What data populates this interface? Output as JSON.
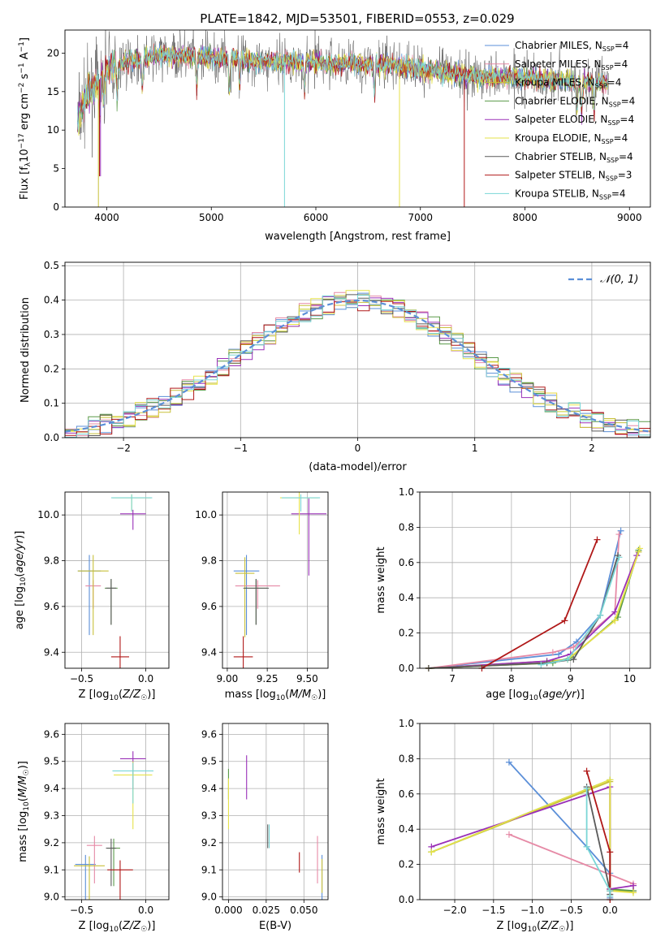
{
  "figure": {
    "title": "PLATE=1842, MJD=53501, FIBERID=0553, z=0.029"
  },
  "models": [
    {
      "name": "Chabrier MILES",
      "n_ssp": 4,
      "color": "#5b8fd8"
    },
    {
      "name": "Salpeter MILES",
      "n_ssp": 4,
      "color": "#e68aa6"
    },
    {
      "name": "Kroupa MILES",
      "n_ssp": 4,
      "color": "#c8c03a"
    },
    {
      "name": "Chabrier ELODIE",
      "n_ssp": 4,
      "color": "#5a9a48"
    },
    {
      "name": "Salpeter ELODIE",
      "n_ssp": 4,
      "color": "#9a30b8"
    },
    {
      "name": "Kroupa ELODIE",
      "n_ssp": 4,
      "color": "#e6e24a"
    },
    {
      "name": "Chabrier STELIB",
      "n_ssp": 4,
      "color": "#5a5a5a"
    },
    {
      "name": "Salpeter STELIB",
      "n_ssp": 3,
      "color": "#b01818"
    },
    {
      "name": "Kroupa STELIB",
      "n_ssp": 4,
      "color": "#7ad6d6"
    }
  ],
  "chart_data": [
    {
      "id": "spectrum",
      "type": "line",
      "title": "PLATE=1842, MJD=53501, FIBERID=0553, z=0.029",
      "xlabel": "wavelength [Angstrom, rest frame]",
      "ylabel": "Flux [f_λ 10^-17 erg cm^-2 s^-1 A^-1]",
      "xlim": [
        3600,
        9200
      ],
      "ylim": [
        0,
        23
      ],
      "xticks": [
        4000,
        5000,
        6000,
        7000,
        8000,
        9000
      ],
      "yticks": [
        0,
        5,
        10,
        15,
        20
      ],
      "series_shape": {
        "x": [
          3720,
          3800,
          3900,
          4000,
          4200,
          4400,
          4600,
          4800,
          5000,
          5200,
          5400,
          5600,
          5800,
          6000,
          6200,
          6400,
          6600,
          6800,
          7000,
          7200,
          7400,
          7600,
          7800,
          8000,
          8200,
          8400,
          8600,
          8800
        ],
        "y": [
          11,
          14.5,
          16,
          18,
          19,
          19.5,
          19.7,
          19.6,
          19.5,
          19.3,
          19.0,
          18.8,
          18.9,
          18.8,
          18.7,
          18.6,
          18.6,
          18.3,
          18.0,
          17.5,
          17.2,
          16.9,
          17.0,
          16.8,
          16.6,
          16.4,
          16.3,
          16.0
        ]
      },
      "legend_position": "upper-right"
    },
    {
      "id": "residuals",
      "type": "line",
      "xlabel": "(data-model)/error",
      "ylabel": "Normed distribution",
      "xlim": [
        -2.5,
        2.5
      ],
      "ylim": [
        0,
        0.51
      ],
      "xticks": [
        -2,
        -1,
        0,
        1,
        2
      ],
      "xticklabels": [
        "−2",
        "−1",
        "0",
        "1",
        "2"
      ],
      "yticks": [
        0,
        0.1,
        0.2,
        0.3,
        0.4,
        0.5
      ],
      "bin_width": 0.1,
      "reference": {
        "name": "N(0,1)",
        "label": "𝒩(0, 1)",
        "mean": 0,
        "sigma": 1
      },
      "grid": true,
      "legend_position": "upper-right"
    },
    {
      "id": "age_vs_Z",
      "type": "scatter",
      "xlabel": "Z [log10(Z/Z☉)]",
      "ylabel": "age  [log10(age/yr)]",
      "xlim": [
        -0.63,
        0.18
      ],
      "ylim": [
        9.33,
        10.1
      ],
      "xticks": [
        -0.5,
        0.0
      ],
      "xticklabels": [
        "−0.5",
        "0.0"
      ],
      "yticks": [
        9.4,
        9.6,
        9.8,
        10.0
      ],
      "points": [
        {
          "m": 0,
          "x": -0.44,
          "y": 9.755,
          "xe": 0.09,
          "ye": 0.28
        },
        {
          "m": 1,
          "x": -0.41,
          "y": 9.69,
          "xe": 0.06,
          "ye": 0.1
        },
        {
          "m": 2,
          "x": -0.41,
          "y": 9.755,
          "xe": 0.12,
          "ye": 0.28
        },
        {
          "m": 3,
          "x": -0.27,
          "y": 9.68,
          "xe": 0.05,
          "ye": 0.16
        },
        {
          "m": 4,
          "x": -0.1,
          "y": 10.005,
          "xe": 0.1,
          "ye": 0.07
        },
        {
          "m": 5,
          "x": -0.11,
          "y": 10.075,
          "xe": 0.15,
          "ye": 0.06
        },
        {
          "m": 6,
          "x": -0.27,
          "y": 9.68,
          "xe": 0.04,
          "ye": 0.16
        },
        {
          "m": 7,
          "x": -0.2,
          "y": 9.38,
          "xe": 0.07,
          "ye": 0.36
        },
        {
          "m": 8,
          "x": -0.11,
          "y": 10.075,
          "xe": 0.16,
          "ye": 0.06
        }
      ]
    },
    {
      "id": "age_vs_mass",
      "type": "scatter",
      "xlabel": "mass [log10(M/M☉)]",
      "ylabel": "",
      "xlim": [
        8.97,
        9.63
      ],
      "ylim": [
        9.33,
        10.1
      ],
      "xticks": [
        9.0,
        9.25,
        9.5
      ],
      "xticklabels": [
        "9.00",
        "9.25",
        "9.50"
      ],
      "yticks": [
        9.4,
        9.6,
        9.8,
        10.0
      ],
      "points": [
        {
          "m": 0,
          "x": 9.12,
          "y": 9.755,
          "xe": 0.08,
          "ye": 0.28
        },
        {
          "m": 1,
          "x": 9.19,
          "y": 9.69,
          "xe": 0.14,
          "ye": 0.1
        },
        {
          "m": 2,
          "x": 9.11,
          "y": 9.745,
          "xe": 0.06,
          "ye": 0.28
        },
        {
          "m": 3,
          "x": 9.18,
          "y": 9.68,
          "xe": 0.07,
          "ye": 0.16
        },
        {
          "m": 4,
          "x": 9.51,
          "y": 10.005,
          "xe": 0.11,
          "ye": 0.27
        },
        {
          "m": 5,
          "x": 9.45,
          "y": 10.075,
          "xe": 0.12,
          "ye": 0.16
        },
        {
          "m": 6,
          "x": 9.18,
          "y": 9.68,
          "xe": 0.08,
          "ye": 0.16
        },
        {
          "m": 7,
          "x": 9.1,
          "y": 9.38,
          "xe": 0.06,
          "ye": 0.36
        },
        {
          "m": 8,
          "x": 9.46,
          "y": 10.075,
          "xe": 0.12,
          "ye": 0.06
        }
      ]
    },
    {
      "id": "weight_vs_age",
      "type": "line",
      "xlabel": "age  [log10(age/yr)]",
      "ylabel": "mass weight",
      "xlim": [
        6.45,
        10.35
      ],
      "ylim": [
        0,
        1.0
      ],
      "xticks": [
        7,
        8,
        9,
        10
      ],
      "yticks": [
        0,
        0.2,
        0.4,
        0.6,
        0.8,
        1.0
      ],
      "grid": true,
      "lines": [
        {
          "m": 0,
          "x": [
            6.6,
            8.8,
            9.1,
            9.5,
            9.85
          ],
          "y": [
            0,
            0.08,
            0.15,
            0.3,
            0.78
          ]
        },
        {
          "m": 1,
          "x": [
            6.6,
            8.7,
            9.05,
            9.75,
            9.82
          ],
          "y": [
            0,
            0.09,
            0.12,
            0.32,
            0.76
          ]
        },
        {
          "m": 2,
          "x": [
            6.6,
            8.6,
            8.95,
            9.75,
            10.15
          ],
          "y": [
            0,
            0.04,
            0.05,
            0.27,
            0.66
          ]
        },
        {
          "m": 3,
          "x": [
            6.6,
            8.7,
            9.0,
            9.8,
            10.15
          ],
          "y": [
            0,
            0.03,
            0.06,
            0.29,
            0.67
          ]
        },
        {
          "m": 4,
          "x": [
            6.6,
            8.6,
            9.0,
            9.75,
            10.12
          ],
          "y": [
            0,
            0.04,
            0.08,
            0.32,
            0.64
          ]
        },
        {
          "m": 5,
          "x": [
            6.6,
            8.6,
            8.95,
            9.75,
            10.17
          ],
          "y": [
            0,
            0.03,
            0.05,
            0.27,
            0.68
          ]
        },
        {
          "m": 6,
          "x": [
            6.6,
            8.6,
            9.05,
            9.5,
            9.8
          ],
          "y": [
            0,
            0.03,
            0.05,
            0.3,
            0.64
          ]
        },
        {
          "m": 7,
          "x": [
            7.5,
            8.9,
            9.45
          ],
          "y": [
            0,
            0.27,
            0.73
          ]
        },
        {
          "m": 8,
          "x": [
            8.5,
            8.95,
            9.5,
            9.82
          ],
          "y": [
            0.02,
            0.05,
            0.3,
            0.63
          ]
        }
      ]
    },
    {
      "id": "mass_vs_Z",
      "type": "scatter",
      "xlabel": "Z [log10(Z/Z☉)]",
      "ylabel": "mass [log10(M/M☉)]",
      "xlim": [
        -0.63,
        0.18
      ],
      "ylim": [
        8.99,
        9.64
      ],
      "xticks": [
        -0.5,
        0.0
      ],
      "xticklabels": [
        "−0.5",
        "0.0"
      ],
      "yticks": [
        9.0,
        9.1,
        9.2,
        9.3,
        9.4,
        9.5,
        9.6
      ],
      "points": [
        {
          "m": 0,
          "x": -0.47,
          "y": 9.12,
          "xe": 0.08,
          "ye": 0.14
        },
        {
          "m": 1,
          "x": -0.4,
          "y": 9.19,
          "xe": 0.06,
          "ye": 0.14
        },
        {
          "m": 2,
          "x": -0.44,
          "y": 9.115,
          "xe": 0.12,
          "ye": 0.14
        },
        {
          "m": 3,
          "x": -0.25,
          "y": 9.18,
          "xe": 0.05,
          "ye": 0.14
        },
        {
          "m": 4,
          "x": -0.1,
          "y": 9.51,
          "xe": 0.1,
          "ye": 0.11
        },
        {
          "m": 5,
          "x": -0.1,
          "y": 9.45,
          "xe": 0.15,
          "ye": 0.2
        },
        {
          "m": 6,
          "x": -0.27,
          "y": 9.18,
          "xe": 0.04,
          "ye": 0.14
        },
        {
          "m": 7,
          "x": -0.2,
          "y": 9.1,
          "xe": 0.1,
          "ye": 0.14
        },
        {
          "m": 8,
          "x": -0.1,
          "y": 9.465,
          "xe": 0.16,
          "ye": 0.12
        }
      ]
    },
    {
      "id": "mass_vs_ebv",
      "type": "scatter",
      "xlabel": "E(B-V)",
      "ylabel": "",
      "xlim": [
        -0.004,
        0.066
      ],
      "ylim": [
        8.99,
        9.64
      ],
      "xticks": [
        0.0,
        0.025,
        0.05
      ],
      "xticklabels": [
        "0.000",
        "0.025",
        "0.050"
      ],
      "yticks": [
        9.0,
        9.1,
        9.2,
        9.3,
        9.4,
        9.5,
        9.6
      ],
      "points": [
        {
          "m": 0,
          "x": 0.062,
          "y": 9.12,
          "ye": 0.14
        },
        {
          "m": 1,
          "x": 0.059,
          "y": 9.19,
          "ye": 0.14
        },
        {
          "m": 2,
          "x": 0.062,
          "y": 9.115,
          "ye": 0.1
        },
        {
          "m": 3,
          "x": 0.0,
          "y": 9.45,
          "ye": 0.09
        },
        {
          "m": 4,
          "x": 0.012,
          "y": 9.49,
          "ye": 0.13
        },
        {
          "m": 5,
          "x": 0.0,
          "y": 9.4,
          "ye": 0.15
        },
        {
          "m": 6,
          "x": 0.026,
          "y": 9.25,
          "ye": 0.07
        },
        {
          "m": 7,
          "x": 0.047,
          "y": 9.15,
          "ye": 0.06
        },
        {
          "m": 8,
          "x": 0.027,
          "y": 9.25,
          "ye": 0.07
        }
      ]
    },
    {
      "id": "weight_vs_Z",
      "type": "line",
      "xlabel": "Z [log10(Z/Z☉)]",
      "ylabel": "mass weight",
      "xlim": [
        -2.45,
        0.52
      ],
      "ylim": [
        0,
        1.0
      ],
      "xticks": [
        -2.0,
        -1.5,
        -1.0,
        -0.5,
        0.0
      ],
      "xticklabels": [
        "−2.0",
        "−1.5",
        "−1.0",
        "−0.5",
        "0.0"
      ],
      "yticks": [
        0,
        0.2,
        0.4,
        0.6,
        0.8,
        1.0
      ],
      "grid": true,
      "lines": [
        {
          "m": 0,
          "x": [
            -1.3,
            -0.3,
            0.0,
            0.0
          ],
          "y": [
            0.78,
            0.3,
            0.15,
            0.01
          ]
        },
        {
          "m": 1,
          "x": -1.3,
          "y": 0.37,
          "x2": [
            -1.3,
            0.3,
            0.3
          ],
          "y2": [
            0.37,
            0.09,
            0.05
          ]
        },
        {
          "m": 2,
          "x": [
            -2.3,
            0.0,
            0.0,
            0.3
          ],
          "y": [
            0.27,
            0.67,
            0.06,
            0.04
          ]
        },
        {
          "m": 3,
          "x": [
            -2.3,
            0.0,
            0.0,
            0.3
          ],
          "y": [
            0.27,
            0.68,
            0.06,
            0.05
          ]
        },
        {
          "m": 4,
          "x": [
            -2.3,
            0.0,
            0.0,
            0.3
          ],
          "y": [
            0.3,
            0.64,
            0.06,
            0.08
          ]
        },
        {
          "m": 5,
          "x": [
            -2.3,
            0.0,
            0.0,
            0.3
          ],
          "y": [
            0.27,
            0.68,
            0.05,
            0.04
          ]
        },
        {
          "m": 6,
          "x": [
            -0.3,
            0.0,
            0.0
          ],
          "y": [
            0.64,
            0.05,
            0.03
          ]
        },
        {
          "m": 7,
          "x": [
            -0.3,
            0.0,
            0.0
          ],
          "y": [
            0.73,
            0.27,
            0.0
          ]
        },
        {
          "m": 8,
          "x": [
            -0.3,
            -0.3,
            0.0,
            0.0
          ],
          "y": [
            0.63,
            0.3,
            0.05,
            0.02
          ]
        }
      ]
    }
  ]
}
